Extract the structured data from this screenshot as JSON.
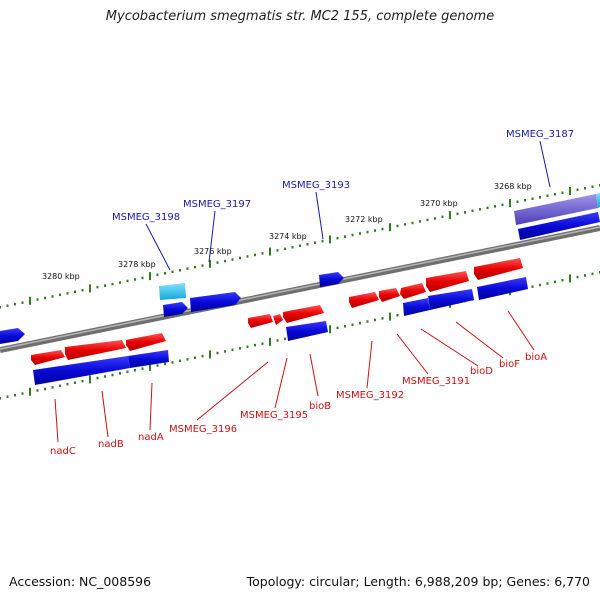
{
  "title": "Mycobacterium smegmatis str. MC2 155, complete genome",
  "footer": {
    "accession": "Accession: NC_008596",
    "info": "Topology: circular; Length: 6,988,209 bp; Genes: 6,770"
  },
  "colors": {
    "forward_cds": "#e00000",
    "reverse_cds": "#0a0ad0",
    "rna_gene": "#22bde6",
    "backbone": "#777777",
    "ticks": "#2f7d1f",
    "label_blue": "#1a1aaa",
    "label_red": "#cc1111"
  },
  "scale_labels": [
    "3268 kbp",
    "3270 kbp",
    "3272 kbp",
    "3274 kbp",
    "3276 kbp",
    "3278 kbp",
    "3280 kbp"
  ],
  "top_labels": [
    "MSMEG_3187",
    "MSMEG_3193",
    "MSMEG_3197",
    "MSMEG_3198"
  ],
  "bottom_labels": [
    "nadC",
    "nadB",
    "nadA",
    "MSMEG_3196",
    "MSMEG_3195",
    "bioB",
    "MSMEG_3192",
    "MSMEG_3191",
    "bioD",
    "bioF",
    "bioA"
  ]
}
